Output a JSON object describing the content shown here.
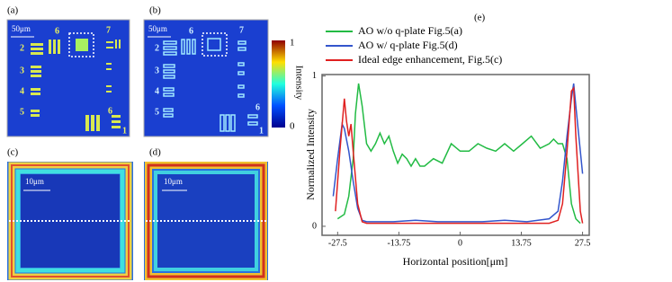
{
  "panels": {
    "a": {
      "label": "(a)",
      "scale": "50μm",
      "digits": [
        "6",
        "7",
        "2",
        "3",
        "4",
        "5",
        "6",
        "1"
      ]
    },
    "b": {
      "label": "(b)",
      "scale": "50μm",
      "digits": [
        "6",
        "7",
        "2",
        "3",
        "4",
        "5",
        "6",
        "1"
      ]
    },
    "c": {
      "label": "(c)",
      "scale": "10μm"
    },
    "d": {
      "label": "(d)",
      "scale": "10μm"
    },
    "colorbar": {
      "title": "Intensity",
      "max": "1",
      "min": "0"
    }
  },
  "chart_data": {
    "type": "line",
    "title": "(e)",
    "x_label": "Horizontal position[μm]",
    "y_label": "Normalized Intensity",
    "xlim": [
      -31,
      29
    ],
    "ylim": [
      -0.06,
      1.01
    ],
    "xticks": [
      -27.5,
      -13.75,
      0,
      13.75,
      27.5
    ],
    "yticks": [
      0,
      1
    ],
    "series": [
      {
        "name": "AO w/o q-plate Fig.5(a)",
        "color": "#22bb44",
        "x": [
          -27.5,
          -26,
          -25,
          -24,
          -23.5,
          -22.8,
          -22,
          -21,
          -20,
          -19,
          -18,
          -17,
          -16,
          -15,
          -14,
          -13,
          -12,
          -11,
          -10,
          -9,
          -8,
          -6,
          -4,
          -2,
          0,
          2,
          4,
          6,
          8,
          10,
          12,
          14,
          16,
          18,
          20,
          21,
          22,
          23,
          24,
          25,
          26,
          27
        ],
        "values": [
          0.05,
          0.08,
          0.2,
          0.45,
          0.75,
          0.95,
          0.8,
          0.55,
          0.5,
          0.55,
          0.62,
          0.55,
          0.6,
          0.5,
          0.42,
          0.48,
          0.45,
          0.4,
          0.45,
          0.4,
          0.4,
          0.45,
          0.42,
          0.55,
          0.5,
          0.5,
          0.55,
          0.52,
          0.5,
          0.55,
          0.5,
          0.55,
          0.6,
          0.52,
          0.55,
          0.58,
          0.55,
          0.55,
          0.45,
          0.15,
          0.05,
          0.02
        ]
      },
      {
        "name": "AO w/ q-plate Fig.5(d)",
        "color": "#3355cc",
        "x": [
          -28.5,
          -27.5,
          -26.5,
          -26,
          -25,
          -24,
          -23,
          -22,
          -21,
          -15,
          -10,
          -5,
          0,
          5,
          10,
          15,
          20,
          22,
          23,
          24,
          25,
          25.5,
          26,
          27,
          27.5
        ],
        "values": [
          0.2,
          0.45,
          0.68,
          0.65,
          0.5,
          0.3,
          0.12,
          0.04,
          0.03,
          0.03,
          0.04,
          0.03,
          0.03,
          0.03,
          0.04,
          0.03,
          0.05,
          0.1,
          0.3,
          0.6,
          0.85,
          0.95,
          0.8,
          0.5,
          0.35
        ]
      },
      {
        "name": "Ideal edge enhancement, Fig.5(c)",
        "color": "#e02020",
        "x": [
          -28,
          -27,
          -26,
          -25.5,
          -25,
          -24.5,
          -24,
          -23,
          -22,
          -21,
          -15,
          -10,
          -5,
          0,
          5,
          10,
          15,
          20,
          22,
          23,
          24,
          25,
          25.5,
          26,
          27,
          27.5
        ],
        "values": [
          0.1,
          0.5,
          0.85,
          0.7,
          0.6,
          0.68,
          0.5,
          0.15,
          0.03,
          0.02,
          0.02,
          0.02,
          0.02,
          0.02,
          0.02,
          0.02,
          0.02,
          0.02,
          0.04,
          0.15,
          0.5,
          0.9,
          0.92,
          0.6,
          0.1,
          0.02
        ]
      }
    ]
  }
}
